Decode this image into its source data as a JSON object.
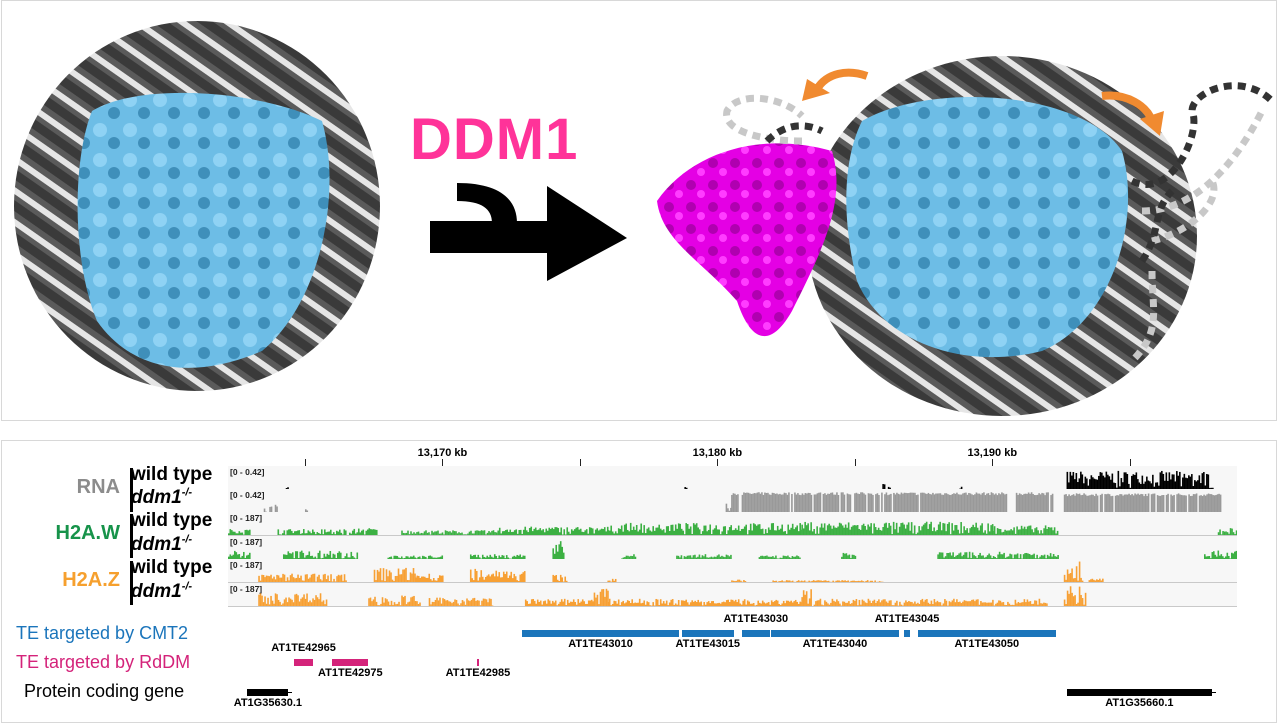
{
  "top_panel": {
    "enzyme_label": "DDM1",
    "colors": {
      "histone_core": "#6bbfe8",
      "dna_dark": "#4a4a4a",
      "dna_light": "#e8e8e8",
      "ddm1": "#ee00ee",
      "ddm1_label": "#ff3399",
      "arrow": "#000000",
      "displacement_arrows": "#f08a30"
    }
  },
  "browser": {
    "coordinate_ticks": [
      "13,170 kb",
      "13,180 kb",
      "13,190 kb"
    ],
    "view_range_kb": [
      13162.2,
      13198.9
    ],
    "groups": [
      {
        "name": "RNA",
        "color": "#8c8c8c"
      },
      {
        "name": "H2A.W",
        "color": "#17934a"
      },
      {
        "name": "H2A.Z",
        "color": "#f6a02e"
      }
    ],
    "tracks": [
      {
        "group": "RNA",
        "sample": "wild type",
        "mutant": false,
        "scale": "[0 - 0.42]",
        "color": "#000000",
        "regions": [
          [
            13164.3,
            13164.4,
            0.15
          ],
          [
            13178.8,
            13178.9,
            0.1
          ],
          [
            13186.0,
            13186.1,
            0.25
          ],
          [
            13186.2,
            13186.3,
            0.1
          ],
          [
            13188.8,
            13188.9,
            0.12
          ],
          [
            13192.7,
            13198.0,
            0.75
          ]
        ]
      },
      {
        "group": "RNA",
        "sample": "ddm1",
        "mutant": true,
        "scale": "[0 - 0.42]",
        "color": "#999999",
        "regions": [
          [
            13163.5,
            13163.6,
            0.2
          ],
          [
            13163.7,
            13163.8,
            0.5
          ],
          [
            13163.9,
            13164.0,
            0.3
          ],
          [
            13165.0,
            13165.1,
            0.2
          ],
          [
            13180.3,
            13180.5,
            0.4
          ],
          [
            13180.5,
            13190.5,
            0.9
          ],
          [
            13190.8,
            13192.2,
            0.9
          ],
          [
            13192.6,
            13198.3,
            0.85
          ]
        ]
      },
      {
        "group": "H2A.W",
        "sample": "wild type",
        "mutant": false,
        "scale": "[0 - 187]",
        "color": "#3cb043",
        "regions": [
          [
            13162.2,
            13163.0,
            0.25
          ],
          [
            13164.0,
            13166.5,
            0.25
          ],
          [
            13166.6,
            13167.6,
            0.3
          ],
          [
            13168.5,
            13172.0,
            0.2
          ],
          [
            13172.0,
            13176.0,
            0.35
          ],
          [
            13176.0,
            13183.0,
            0.5
          ],
          [
            13183.0,
            13190.0,
            0.55
          ],
          [
            13190.0,
            13192.4,
            0.4
          ],
          [
            13198.2,
            13198.9,
            0.3
          ]
        ]
      },
      {
        "group": "H2A.W",
        "sample": "ddm1",
        "mutant": true,
        "scale": "[0 - 187]",
        "color": "#3cb043",
        "regions": [
          [
            13162.2,
            13163.0,
            0.35
          ],
          [
            13164.2,
            13166.9,
            0.35
          ],
          [
            13168.0,
            13170.0,
            0.15
          ],
          [
            13171.0,
            13173.0,
            0.2
          ],
          [
            13174.0,
            13174.4,
            0.75
          ],
          [
            13176.5,
            13177.0,
            0.2
          ],
          [
            13178.5,
            13180.5,
            0.2
          ],
          [
            13181.5,
            13183.0,
            0.15
          ],
          [
            13184.5,
            13185.0,
            0.3
          ],
          [
            13188.0,
            13192.4,
            0.3
          ],
          [
            13197.7,
            13198.9,
            0.35
          ]
        ]
      },
      {
        "group": "H2A.Z",
        "sample": "wild type",
        "mutant": false,
        "scale": "[0 - 187]",
        "color": "#f7a034",
        "regions": [
          [
            13163.3,
            13166.5,
            0.35
          ],
          [
            13167.5,
            13169.0,
            0.6
          ],
          [
            13169.0,
            13170.0,
            0.35
          ],
          [
            13171.0,
            13173.0,
            0.55
          ],
          [
            13174.0,
            13174.5,
            0.3
          ],
          [
            13176.0,
            13176.3,
            0.15
          ],
          [
            13180.5,
            13181.0,
            0.1
          ],
          [
            13182.0,
            13186.0,
            0.08
          ],
          [
            13192.6,
            13193.3,
            0.9
          ],
          [
            13193.5,
            13194.0,
            0.15
          ]
        ]
      },
      {
        "group": "H2A.Z",
        "sample": "ddm1",
        "mutant": true,
        "scale": "[0 - 187]",
        "color": "#f7a034",
        "regions": [
          [
            13163.3,
            13165.8,
            0.55
          ],
          [
            13167.3,
            13169.2,
            0.45
          ],
          [
            13169.5,
            13171.8,
            0.35
          ],
          [
            13173.0,
            13175.5,
            0.3
          ],
          [
            13175.5,
            13176.0,
            0.75
          ],
          [
            13176.0,
            13183.0,
            0.3
          ],
          [
            13183.0,
            13183.4,
            0.85
          ],
          [
            13183.5,
            13192.0,
            0.3
          ],
          [
            13192.6,
            13193.4,
            0.85
          ]
        ]
      }
    ],
    "annotation_tracks": [
      {
        "label": "TE targeted by CMT2",
        "color": "#1b75bb",
        "features": [
          {
            "name": "AT1TE43010",
            "start": 13172.9,
            "end": 13178.6,
            "label_pos": "below"
          },
          {
            "name": "AT1TE43015",
            "start": 13178.7,
            "end": 13180.6,
            "label_pos": "below"
          },
          {
            "name": "AT1TE43030",
            "start": 13180.9,
            "end": 13181.9,
            "label_pos": "above"
          },
          {
            "name": "AT1TE43040",
            "start": 13181.95,
            "end": 13186.6,
            "label_pos": "below"
          },
          {
            "name": "AT1TE43045",
            "start": 13186.8,
            "end": 13187.0,
            "label_pos": "above"
          },
          {
            "name": "AT1TE43050",
            "start": 13187.3,
            "end": 13192.3,
            "label_pos": "below"
          }
        ]
      },
      {
        "label": "TE targeted by RdDM",
        "color": "#d4237a",
        "features": [
          {
            "name": "AT1TE42965",
            "start": 13164.6,
            "end": 13165.3,
            "label_pos": "above"
          },
          {
            "name": "AT1TE42975",
            "start": 13166.0,
            "end": 13167.3,
            "label_pos": "below"
          },
          {
            "name": "AT1TE42985",
            "start": 13171.25,
            "end": 13171.33,
            "label_pos": "below"
          }
        ]
      },
      {
        "label": "Protein coding gene",
        "color": "#000000",
        "features": [
          {
            "name": "AT1G35630.1",
            "start": 13162.9,
            "end": 13164.4,
            "label_pos": "below"
          },
          {
            "name": "AT1G35660.1",
            "start": 13192.7,
            "end": 13198.0,
            "label_pos": "below"
          }
        ]
      }
    ]
  }
}
